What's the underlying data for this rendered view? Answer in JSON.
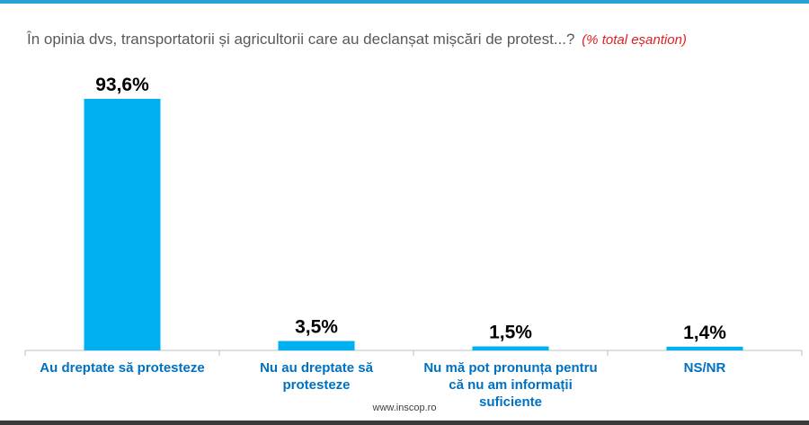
{
  "question": "În opinia dvs, transportatorii și agricultorii care au declanșat mișcări de protest...?",
  "question_note": "(% total eșantion)",
  "footer": "www.inscop.ro",
  "colors": {
    "bar": "#00b0f0",
    "category_text": "#0070c0",
    "note": "#e02020",
    "accent": "#29a3d6"
  },
  "chart_data": {
    "type": "bar",
    "categories": [
      [
        "Au dreptate să protesteze"
      ],
      [
        "Nu au dreptate să",
        "protesteze"
      ],
      [
        "Nu mă pot pronunța pentru",
        "că nu am informații",
        "suficiente"
      ],
      [
        "NS/NR"
      ]
    ],
    "values": [
      93.6,
      3.5,
      1.5,
      1.4
    ],
    "value_labels": [
      "93,6%",
      "3,5%",
      "1,5%",
      "1,4%"
    ],
    "ylim": [
      0,
      100
    ],
    "title": "",
    "xlabel": "",
    "ylabel": "",
    "grid": false,
    "legend": "none"
  }
}
